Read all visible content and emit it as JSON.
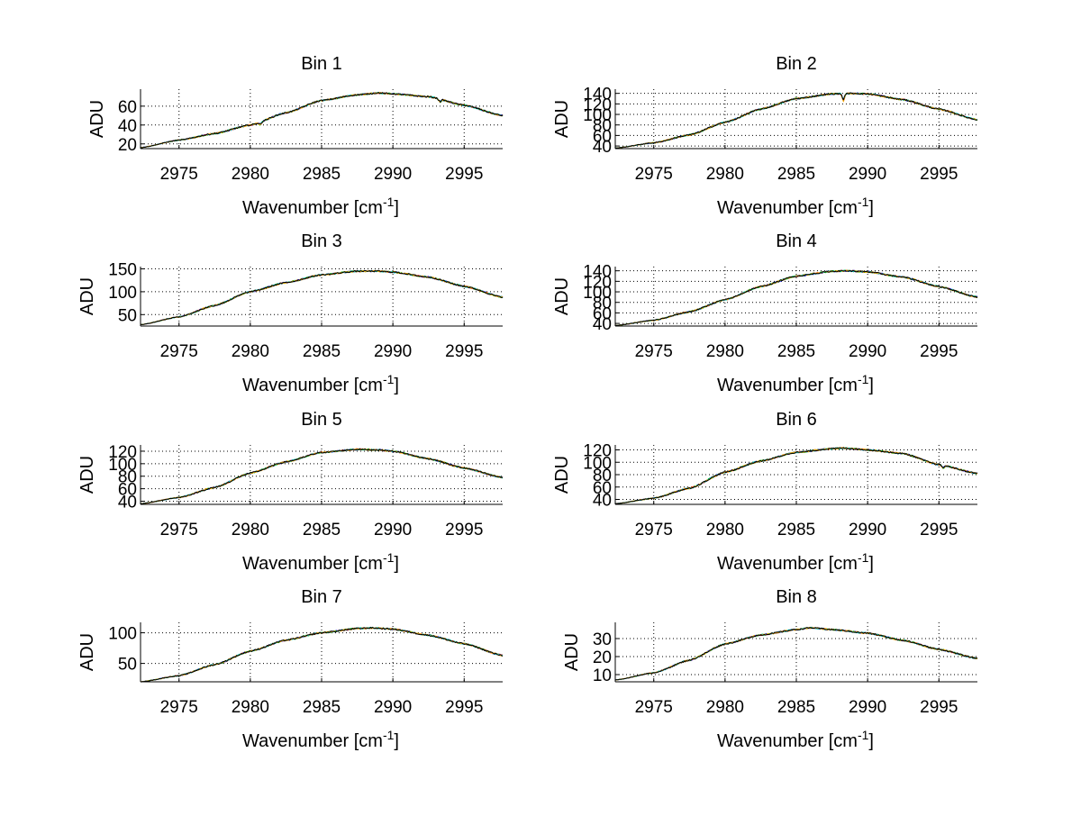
{
  "figure": {
    "background": "#ffffff"
  },
  "chart_data": [
    {
      "type": "line",
      "title": "Bin 1",
      "xlabel": "Wavenumber [cm",
      "xlabel_sup": "-1",
      "xlabel_close": "]",
      "ylabel": "ADU",
      "xlim": [
        2972.3,
        2997.7
      ],
      "ylim": [
        15,
        78
      ],
      "xticks": [
        2975,
        2980,
        2985,
        2990,
        2995
      ],
      "yticks": [
        20,
        40,
        60
      ],
      "grid": true,
      "points": [
        [
          2972.3,
          16
        ],
        [
          2975,
          24
        ],
        [
          2977.5,
          31
        ],
        [
          2980,
          40
        ],
        [
          2982.5,
          53
        ],
        [
          2985,
          66
        ],
        [
          2987.5,
          72
        ],
        [
          2989,
          74
        ],
        [
          2990,
          73
        ],
        [
          2992.5,
          70
        ],
        [
          2995,
          61
        ],
        [
          2997.7,
          50
        ]
      ],
      "dips": [
        {
          "x": 2980.7,
          "y": 40
        },
        {
          "x": 2993.3,
          "y": 64
        }
      ],
      "series": [
        {
          "color": "#ff0000"
        },
        {
          "color": "#0000ff"
        },
        {
          "color": "#00cc00"
        },
        {
          "color": "#00cccc"
        },
        {
          "color": "#ffaa00"
        },
        {
          "color": "#000000"
        }
      ]
    },
    {
      "type": "line",
      "title": "Bin 2",
      "xlabel": "Wavenumber [cm",
      "xlabel_sup": "-1",
      "xlabel_close": "]",
      "ylabel": "ADU",
      "xlim": [
        2972.3,
        2997.7
      ],
      "ylim": [
        35,
        148
      ],
      "xticks": [
        2975,
        2980,
        2985,
        2990,
        2995
      ],
      "yticks": [
        40,
        60,
        80,
        100,
        120,
        140
      ],
      "grid": true,
      "points": [
        [
          2972.3,
          36
        ],
        [
          2975,
          46
        ],
        [
          2977.5,
          61
        ],
        [
          2980,
          85
        ],
        [
          2982.5,
          110
        ],
        [
          2985,
          130
        ],
        [
          2987.5,
          139
        ],
        [
          2989,
          140
        ],
        [
          2990,
          139
        ],
        [
          2992.5,
          128
        ],
        [
          2995,
          110
        ],
        [
          2997.7,
          90
        ]
      ],
      "dips": [
        {
          "x": 2988.3,
          "y": 125
        }
      ],
      "series": [
        {
          "color": "#ff0000"
        },
        {
          "color": "#0000ff"
        },
        {
          "color": "#00cc00"
        },
        {
          "color": "#00cccc"
        },
        {
          "color": "#ffaa00"
        },
        {
          "color": "#000000"
        }
      ]
    },
    {
      "type": "line",
      "title": "Bin 3",
      "xlabel": "Wavenumber [cm",
      "xlabel_sup": "-1",
      "xlabel_close": "]",
      "ylabel": "ADU",
      "xlim": [
        2972.3,
        2997.7
      ],
      "ylim": [
        25,
        155
      ],
      "xticks": [
        2975,
        2980,
        2985,
        2990,
        2995
      ],
      "yticks": [
        50,
        100,
        150
      ],
      "grid": true,
      "points": [
        [
          2972.3,
          28
        ],
        [
          2975,
          45
        ],
        [
          2977.5,
          70
        ],
        [
          2980,
          100
        ],
        [
          2982.5,
          120
        ],
        [
          2985,
          137
        ],
        [
          2987.5,
          145
        ],
        [
          2989,
          145
        ],
        [
          2990,
          143
        ],
        [
          2992.5,
          132
        ],
        [
          2995,
          112
        ],
        [
          2997.7,
          88
        ]
      ],
      "dips": [],
      "series": [
        {
          "color": "#ff0000"
        },
        {
          "color": "#0000ff"
        },
        {
          "color": "#00cc00"
        },
        {
          "color": "#00cccc"
        },
        {
          "color": "#ffaa00"
        },
        {
          "color": "#000000"
        }
      ]
    },
    {
      "type": "line",
      "title": "Bin 4",
      "xlabel": "Wavenumber [cm",
      "xlabel_sup": "-1",
      "xlabel_close": "]",
      "ylabel": "ADU",
      "xlim": [
        2972.3,
        2997.7
      ],
      "ylim": [
        35,
        148
      ],
      "xticks": [
        2975,
        2980,
        2985,
        2990,
        2995
      ],
      "yticks": [
        40,
        60,
        80,
        100,
        120,
        140
      ],
      "grid": true,
      "points": [
        [
          2972.3,
          36
        ],
        [
          2975,
          46
        ],
        [
          2977.5,
          62
        ],
        [
          2980,
          85
        ],
        [
          2982.5,
          110
        ],
        [
          2985,
          130
        ],
        [
          2987.5,
          139
        ],
        [
          2988.5,
          140
        ],
        [
          2990,
          138
        ],
        [
          2992.5,
          128
        ],
        [
          2995,
          110
        ],
        [
          2997.7,
          90
        ]
      ],
      "dips": [],
      "series": [
        {
          "color": "#ff0000"
        },
        {
          "color": "#0000ff"
        },
        {
          "color": "#00cc00"
        },
        {
          "color": "#00cccc"
        },
        {
          "color": "#ffaa00"
        },
        {
          "color": "#000000"
        }
      ]
    },
    {
      "type": "line",
      "title": "Bin 5",
      "xlabel": "Wavenumber [cm",
      "xlabel_sup": "-1",
      "xlabel_close": "]",
      "ylabel": "ADU",
      "xlim": [
        2972.3,
        2997.7
      ],
      "ylim": [
        35,
        130
      ],
      "xticks": [
        2975,
        2980,
        2985,
        2990,
        2995
      ],
      "yticks": [
        40,
        60,
        80,
        100,
        120
      ],
      "grid": true,
      "points": [
        [
          2972.3,
          36
        ],
        [
          2975,
          46
        ],
        [
          2977.5,
          62
        ],
        [
          2980,
          85
        ],
        [
          2982.5,
          103
        ],
        [
          2985,
          118
        ],
        [
          2987.5,
          123
        ],
        [
          2989,
          122
        ],
        [
          2990,
          120
        ],
        [
          2992.5,
          108
        ],
        [
          2995,
          93
        ],
        [
          2997.7,
          78
        ]
      ],
      "dips": [],
      "series": [
        {
          "color": "#ff0000"
        },
        {
          "color": "#0000ff"
        },
        {
          "color": "#00cc00"
        },
        {
          "color": "#00cccc"
        },
        {
          "color": "#ffaa00"
        },
        {
          "color": "#000000"
        }
      ]
    },
    {
      "type": "line",
      "title": "Bin 6",
      "xlabel": "Wavenumber [cm",
      "xlabel_sup": "-1",
      "xlabel_close": "]",
      "ylabel": "ADU",
      "xlim": [
        2972.3,
        2997.7
      ],
      "ylim": [
        32,
        128
      ],
      "xticks": [
        2975,
        2980,
        2985,
        2990,
        2995
      ],
      "yticks": [
        40,
        60,
        80,
        100,
        120
      ],
      "grid": true,
      "points": [
        [
          2972.3,
          33
        ],
        [
          2975,
          42
        ],
        [
          2977.5,
          58
        ],
        [
          2980,
          84
        ],
        [
          2982.5,
          102
        ],
        [
          2985,
          116
        ],
        [
          2987.5,
          122
        ],
        [
          2988.3,
          123
        ],
        [
          2990,
          120
        ],
        [
          2992.5,
          114
        ],
        [
          2995,
          96
        ],
        [
          2997.7,
          82
        ]
      ],
      "dips": [
        {
          "x": 2995.3,
          "y": 90
        }
      ],
      "series": [
        {
          "color": "#ff0000"
        },
        {
          "color": "#0000ff"
        },
        {
          "color": "#00cc00"
        },
        {
          "color": "#00cccc"
        },
        {
          "color": "#ffaa00"
        },
        {
          "color": "#000000"
        }
      ]
    },
    {
      "type": "line",
      "title": "Bin 7",
      "xlabel": "Wavenumber [cm",
      "xlabel_sup": "-1",
      "xlabel_close": "]",
      "ylabel": "ADU",
      "xlim": [
        2972.3,
        2997.7
      ],
      "ylim": [
        20,
        117
      ],
      "xticks": [
        2975,
        2980,
        2985,
        2990,
        2995
      ],
      "yticks": [
        50,
        100
      ],
      "grid": true,
      "points": [
        [
          2972.3,
          20
        ],
        [
          2975,
          30
        ],
        [
          2977.5,
          48
        ],
        [
          2980,
          70
        ],
        [
          2982.5,
          88
        ],
        [
          2985,
          100
        ],
        [
          2987.5,
          107
        ],
        [
          2988.5,
          108
        ],
        [
          2990,
          106
        ],
        [
          2992.5,
          96
        ],
        [
          2995,
          82
        ],
        [
          2997.7,
          63
        ]
      ],
      "dips": [],
      "series": [
        {
          "color": "#ff0000"
        },
        {
          "color": "#0000ff"
        },
        {
          "color": "#00cc00"
        },
        {
          "color": "#00cccc"
        },
        {
          "color": "#ffaa00"
        },
        {
          "color": "#000000"
        }
      ]
    },
    {
      "type": "line",
      "title": "Bin 8",
      "xlabel": "Wavenumber [cm",
      "xlabel_sup": "-1",
      "xlabel_close": "]",
      "ylabel": "ADU",
      "xlim": [
        2972.3,
        2997.7
      ],
      "ylim": [
        6,
        39
      ],
      "xticks": [
        2975,
        2980,
        2985,
        2990,
        2995
      ],
      "yticks": [
        10,
        20,
        30
      ],
      "grid": true,
      "points": [
        [
          2972.3,
          7
        ],
        [
          2975,
          11
        ],
        [
          2977.5,
          18
        ],
        [
          2980,
          27
        ],
        [
          2982.5,
          32
        ],
        [
          2985,
          35
        ],
        [
          2986,
          36
        ],
        [
          2987.5,
          35
        ],
        [
          2990,
          33
        ],
        [
          2992.5,
          29
        ],
        [
          2995,
          24
        ],
        [
          2997.7,
          19
        ]
      ],
      "dips": [],
      "series": [
        {
          "color": "#ff0000"
        },
        {
          "color": "#0000ff"
        },
        {
          "color": "#00cc00"
        },
        {
          "color": "#00cccc"
        },
        {
          "color": "#ffaa00"
        },
        {
          "color": "#000000"
        }
      ]
    }
  ]
}
